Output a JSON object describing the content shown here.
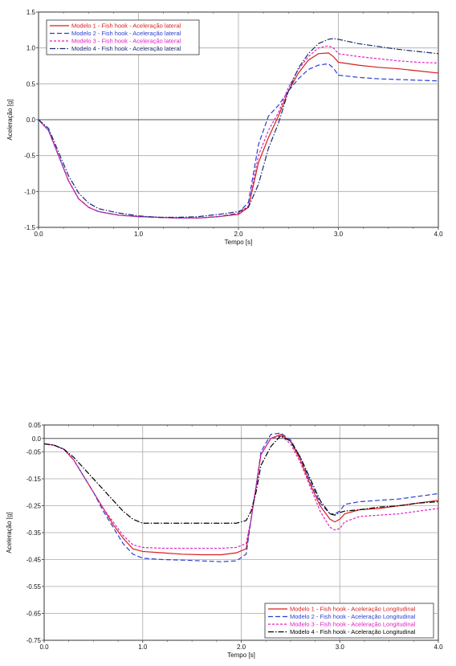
{
  "chart_data": [
    {
      "type": "line",
      "xlabel": "Tempo [s]",
      "ylabel": "Aceleração [g]",
      "xlim": [
        0,
        4
      ],
      "ylim": [
        -1.5,
        1.5
      ],
      "xticks": [
        "0.0",
        "1.0",
        "2.0",
        "3.0",
        "4.0"
      ],
      "yticks": [
        "1.5",
        "1.0",
        "0.5",
        "0.0",
        "-0.5",
        "-1.0",
        "-1.5"
      ],
      "grid": true,
      "legend_position": "top-left",
      "series": [
        {
          "name": "Modelo 1 - Fish hook - Aceleração lateral",
          "color": "#d81e1e",
          "dash": "solid",
          "x": [
            0,
            0.1,
            0.2,
            0.3,
            0.4,
            0.5,
            0.6,
            0.8,
            1.0,
            1.2,
            1.4,
            1.6,
            1.8,
            2.0,
            2.1,
            2.2,
            2.3,
            2.4,
            2.5,
            2.6,
            2.7,
            2.8,
            2.9,
            2.95,
            3.0,
            3.2,
            3.4,
            3.6,
            3.8,
            4.0
          ],
          "y": [
            0,
            -0.15,
            -0.5,
            -0.85,
            -1.1,
            -1.22,
            -1.28,
            -1.33,
            -1.35,
            -1.36,
            -1.37,
            -1.37,
            -1.35,
            -1.32,
            -1.22,
            -0.6,
            -0.25,
            0.05,
            0.4,
            0.65,
            0.83,
            0.92,
            0.93,
            0.88,
            0.8,
            0.76,
            0.73,
            0.71,
            0.68,
            0.65
          ]
        },
        {
          "name": "Modelo 2 - Fish hook - Aceleração lateral",
          "color": "#2a3fd0",
          "dash": "6,3",
          "x": [
            0,
            0.1,
            0.2,
            0.3,
            0.4,
            0.5,
            0.6,
            0.8,
            1.0,
            1.2,
            1.4,
            1.6,
            1.8,
            2.0,
            2.1,
            2.2,
            2.3,
            2.4,
            2.5,
            2.6,
            2.7,
            2.8,
            2.9,
            2.95,
            3.0,
            3.2,
            3.4,
            3.6,
            3.8,
            4.0
          ],
          "y": [
            0,
            -0.15,
            -0.5,
            -0.85,
            -1.1,
            -1.22,
            -1.28,
            -1.33,
            -1.35,
            -1.36,
            -1.37,
            -1.37,
            -1.35,
            -1.3,
            -1.15,
            -0.35,
            0.05,
            0.2,
            0.4,
            0.57,
            0.7,
            0.76,
            0.78,
            0.72,
            0.62,
            0.59,
            0.57,
            0.56,
            0.55,
            0.54
          ]
        },
        {
          "name": "Modelo 3 - Fish hook - Aceleração lateral",
          "color": "#e020c0",
          "dash": "3,2",
          "x": [
            0,
            0.1,
            0.2,
            0.3,
            0.4,
            0.5,
            0.6,
            0.8,
            1.0,
            1.2,
            1.4,
            1.6,
            1.8,
            2.0,
            2.1,
            2.2,
            2.3,
            2.4,
            2.5,
            2.6,
            2.7,
            2.8,
            2.9,
            2.95,
            3.0,
            3.2,
            3.4,
            3.6,
            3.8,
            4.0
          ],
          "y": [
            0,
            -0.15,
            -0.5,
            -0.85,
            -1.1,
            -1.22,
            -1.28,
            -1.33,
            -1.35,
            -1.36,
            -1.37,
            -1.37,
            -1.35,
            -1.31,
            -1.2,
            -0.5,
            -0.15,
            0.1,
            0.45,
            0.7,
            0.88,
            1.0,
            1.03,
            1.0,
            0.92,
            0.88,
            0.85,
            0.82,
            0.8,
            0.79
          ]
        },
        {
          "name": "Modelo 4 - Fish hook - Aceleração lateral",
          "color": "#1a2a70",
          "dash": "7,2,1.5,2",
          "x": [
            0,
            0.1,
            0.2,
            0.3,
            0.4,
            0.5,
            0.6,
            0.8,
            1.0,
            1.2,
            1.4,
            1.6,
            1.8,
            2.0,
            2.1,
            2.2,
            2.3,
            2.4,
            2.5,
            2.6,
            2.7,
            2.8,
            2.9,
            2.95,
            3.0,
            3.2,
            3.4,
            3.6,
            3.8,
            4.0
          ],
          "y": [
            0,
            -0.12,
            -0.45,
            -0.78,
            -1.02,
            -1.16,
            -1.24,
            -1.3,
            -1.34,
            -1.36,
            -1.36,
            -1.35,
            -1.32,
            -1.28,
            -1.22,
            -0.9,
            -0.4,
            -0.05,
            0.4,
            0.72,
            0.92,
            1.06,
            1.12,
            1.13,
            1.12,
            1.06,
            1.02,
            0.98,
            0.95,
            0.92
          ]
        }
      ]
    },
    {
      "type": "line",
      "xlabel": "Tempo [s]",
      "ylabel": "Aceleração [g]",
      "xlim": [
        0,
        4
      ],
      "ylim": [
        -0.75,
        0.05
      ],
      "xticks": [
        "0.0",
        "1.0",
        "2.0",
        "3.0",
        "4.0"
      ],
      "yticks": [
        "0.05",
        "0.0",
        "-0.05",
        "-0.15",
        "-0.25",
        "-0.35",
        "-0.45",
        "-0.55",
        "-0.65",
        "-0.75"
      ],
      "grid": true,
      "legend_position": "bottom-right",
      "series": [
        {
          "name": "Modelo 1 - Fish hook - Aceleração Longitudinal",
          "color": "#d81e1e",
          "dash": "solid",
          "x": [
            0,
            0.1,
            0.2,
            0.3,
            0.4,
            0.5,
            0.6,
            0.7,
            0.8,
            0.9,
            1.0,
            1.2,
            1.4,
            1.6,
            1.8,
            1.95,
            2.05,
            2.1,
            2.15,
            2.2,
            2.3,
            2.4,
            2.5,
            2.6,
            2.7,
            2.8,
            2.9,
            2.95,
            3.0,
            3.05,
            3.2,
            3.4,
            3.6,
            3.8,
            4.0
          ],
          "y": [
            -0.02,
            -0.025,
            -0.04,
            -0.08,
            -0.14,
            -0.2,
            -0.26,
            -0.32,
            -0.37,
            -0.41,
            -0.42,
            -0.425,
            -0.43,
            -0.432,
            -0.432,
            -0.425,
            -0.41,
            -0.3,
            -0.18,
            -0.06,
            0.0,
            0.015,
            -0.01,
            -0.08,
            -0.17,
            -0.25,
            -0.3,
            -0.31,
            -0.3,
            -0.28,
            -0.265,
            -0.26,
            -0.25,
            -0.24,
            -0.23
          ]
        },
        {
          "name": "Modelo 2 - Fish hook - Aceleração Longitudinal",
          "color": "#2a3fd0",
          "dash": "6,3",
          "x": [
            0,
            0.1,
            0.2,
            0.3,
            0.4,
            0.5,
            0.6,
            0.7,
            0.8,
            0.9,
            1.0,
            1.2,
            1.4,
            1.6,
            1.8,
            1.95,
            2.05,
            2.1,
            2.15,
            2.2,
            2.3,
            2.4,
            2.5,
            2.6,
            2.7,
            2.8,
            2.9,
            2.95,
            3.0,
            3.05,
            3.2,
            3.4,
            3.6,
            3.8,
            4.0
          ],
          "y": [
            -0.02,
            -0.025,
            -0.04,
            -0.08,
            -0.14,
            -0.2,
            -0.27,
            -0.33,
            -0.39,
            -0.43,
            -0.445,
            -0.45,
            -0.452,
            -0.455,
            -0.458,
            -0.455,
            -0.43,
            -0.3,
            -0.18,
            -0.05,
            0.015,
            0.02,
            -0.005,
            -0.07,
            -0.16,
            -0.24,
            -0.28,
            -0.28,
            -0.27,
            -0.245,
            -0.235,
            -0.23,
            -0.225,
            -0.215,
            -0.205
          ]
        },
        {
          "name": "Modelo 3 - Fish hook - Aceleração Longitudinal",
          "color": "#e020c0",
          "dash": "3,2",
          "x": [
            0,
            0.1,
            0.2,
            0.3,
            0.4,
            0.5,
            0.6,
            0.7,
            0.8,
            0.9,
            1.0,
            1.2,
            1.4,
            1.6,
            1.8,
            1.95,
            2.05,
            2.1,
            2.15,
            2.2,
            2.3,
            2.4,
            2.5,
            2.6,
            2.7,
            2.8,
            2.9,
            2.95,
            3.0,
            3.05,
            3.2,
            3.4,
            3.6,
            3.8,
            4.0
          ],
          "y": [
            -0.02,
            -0.025,
            -0.04,
            -0.08,
            -0.14,
            -0.2,
            -0.26,
            -0.31,
            -0.36,
            -0.395,
            -0.405,
            -0.408,
            -0.408,
            -0.408,
            -0.408,
            -0.405,
            -0.39,
            -0.3,
            -0.18,
            -0.06,
            0.0,
            0.01,
            -0.02,
            -0.09,
            -0.18,
            -0.27,
            -0.33,
            -0.34,
            -0.335,
            -0.31,
            -0.29,
            -0.285,
            -0.28,
            -0.27,
            -0.26
          ]
        },
        {
          "name": "Modelo 4 - Fish hook - Aceleração Longitudinal",
          "color": "#000000",
          "dash": "7,2,1.5,2",
          "x": [
            0,
            0.1,
            0.2,
            0.3,
            0.4,
            0.5,
            0.6,
            0.7,
            0.8,
            0.9,
            1.0,
            1.2,
            1.4,
            1.6,
            1.8,
            1.95,
            2.05,
            2.1,
            2.15,
            2.2,
            2.3,
            2.4,
            2.5,
            2.6,
            2.7,
            2.8,
            2.9,
            2.95,
            3.0,
            3.05,
            3.2,
            3.4,
            3.6,
            3.8,
            4.0
          ],
          "y": [
            -0.02,
            -0.025,
            -0.04,
            -0.07,
            -0.11,
            -0.15,
            -0.19,
            -0.23,
            -0.27,
            -0.3,
            -0.315,
            -0.315,
            -0.315,
            -0.315,
            -0.315,
            -0.315,
            -0.305,
            -0.27,
            -0.2,
            -0.1,
            -0.03,
            0.01,
            -0.01,
            -0.07,
            -0.15,
            -0.23,
            -0.28,
            -0.285,
            -0.275,
            -0.27,
            -0.265,
            -0.255,
            -0.25,
            -0.24,
            -0.235
          ]
        }
      ]
    }
  ]
}
